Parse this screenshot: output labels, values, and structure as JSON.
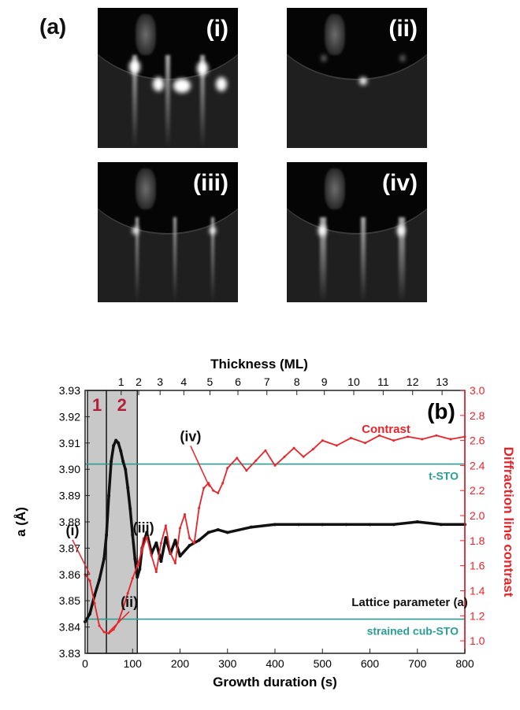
{
  "panel_a": {
    "label": "(a)",
    "images": [
      {
        "label": "(i)"
      },
      {
        "label": "(ii)"
      },
      {
        "label": "(iii)"
      },
      {
        "label": "(iv)"
      }
    ]
  },
  "colors": {
    "lattice": "#111111",
    "contrast": "#e8242a",
    "reference": "#2a9d94",
    "shade": "#c8c8c8",
    "region": "#b0203a"
  },
  "chart_data": {
    "type": "line",
    "panel_label": "(b)",
    "xlabel": "Growth duration (s)",
    "xlim": [
      0,
      800
    ],
    "x_ticks": [
      0,
      100,
      200,
      300,
      400,
      500,
      600,
      700,
      800
    ],
    "top_axis": {
      "label": "Thickness (ML)",
      "ticks": [
        {
          "ml": 1,
          "t": 76
        },
        {
          "ml": 2,
          "t": 113
        },
        {
          "ml": 3,
          "t": 158
        },
        {
          "ml": 4,
          "t": 208
        },
        {
          "ml": 5,
          "t": 263
        },
        {
          "ml": 6,
          "t": 322
        },
        {
          "ml": 7,
          "t": 383
        },
        {
          "ml": 8,
          "t": 446
        },
        {
          "ml": 9,
          "t": 504
        },
        {
          "ml": 10,
          "t": 566
        },
        {
          "ml": 11,
          "t": 628
        },
        {
          "ml": 12,
          "t": 690
        },
        {
          "ml": 13,
          "t": 752
        }
      ]
    },
    "y_left": {
      "label": "a (Å)",
      "lim": [
        3.83,
        3.93
      ],
      "ticks": [
        3.83,
        3.84,
        3.85,
        3.86,
        3.87,
        3.88,
        3.89,
        3.9,
        3.91,
        3.92,
        3.93
      ]
    },
    "y_right": {
      "label": "Diffraction line contrast",
      "lim": [
        0.9,
        3.0
      ],
      "ticks": [
        1.0,
        1.2,
        1.4,
        1.6,
        1.8,
        2.0,
        2.2,
        2.4,
        2.6,
        2.8,
        3.0
      ]
    },
    "series": [
      {
        "name": "Lattice parameter (a)",
        "axis": "left",
        "x": [
          0,
          10,
          20,
          30,
          40,
          45,
          50,
          55,
          60,
          65,
          70,
          75,
          80,
          85,
          90,
          95,
          100,
          105,
          110,
          115,
          120,
          130,
          140,
          150,
          160,
          170,
          180,
          190,
          200,
          220,
          240,
          260,
          280,
          300,
          350,
          400,
          450,
          500,
          550,
          600,
          650,
          700,
          750,
          800
        ],
        "y": [
          3.842,
          3.845,
          3.852,
          3.858,
          3.866,
          3.875,
          3.89,
          3.903,
          3.909,
          3.911,
          3.91,
          3.907,
          3.903,
          3.9,
          3.893,
          3.885,
          3.875,
          3.866,
          3.859,
          3.862,
          3.87,
          3.876,
          3.868,
          3.872,
          3.865,
          3.874,
          3.868,
          3.873,
          3.867,
          3.871,
          3.873,
          3.876,
          3.877,
          3.876,
          3.878,
          3.879,
          3.879,
          3.879,
          3.879,
          3.879,
          3.879,
          3.88,
          3.879,
          3.879
        ]
      },
      {
        "name": "Contrast",
        "axis": "right",
        "x": [
          0,
          10,
          20,
          30,
          40,
          50,
          60,
          70,
          80,
          90,
          100,
          110,
          120,
          130,
          140,
          150,
          160,
          170,
          180,
          190,
          200,
          210,
          220,
          230,
          240,
          250,
          260,
          270,
          280,
          290,
          300,
          320,
          340,
          360,
          380,
          400,
          420,
          440,
          460,
          480,
          500,
          530,
          560,
          590,
          620,
          650,
          680,
          710,
          740,
          770,
          800
        ],
        "y": [
          1.53,
          1.48,
          1.3,
          1.12,
          1.07,
          1.06,
          1.09,
          1.15,
          1.26,
          1.38,
          1.5,
          1.6,
          1.72,
          1.83,
          1.68,
          1.55,
          1.78,
          1.92,
          1.7,
          1.62,
          1.9,
          2.01,
          1.82,
          1.78,
          2.06,
          2.22,
          2.26,
          2.2,
          2.18,
          2.26,
          2.38,
          2.46,
          2.36,
          2.44,
          2.52,
          2.4,
          2.47,
          2.54,
          2.47,
          2.53,
          2.6,
          2.56,
          2.62,
          2.58,
          2.64,
          2.6,
          2.63,
          2.61,
          2.64,
          2.61,
          2.63
        ]
      }
    ],
    "reference_lines": [
      {
        "label": "t-STO",
        "a": 3.902
      },
      {
        "label": "strained cub-STO",
        "a": 3.843
      }
    ],
    "regions": [
      {
        "label": "1",
        "from": 5,
        "to": 45
      },
      {
        "label": "2",
        "from": 45,
        "to": 110
      }
    ],
    "annotations": [
      {
        "label": "(i)",
        "x": 10,
        "contrast": 1.53
      },
      {
        "label": "(ii)",
        "x": 50,
        "contrast": 1.07
      },
      {
        "label": "(iii)",
        "x": 113,
        "contrast": 1.6
      },
      {
        "label": "(iv)",
        "x": 262,
        "contrast": 2.23
      }
    ]
  }
}
